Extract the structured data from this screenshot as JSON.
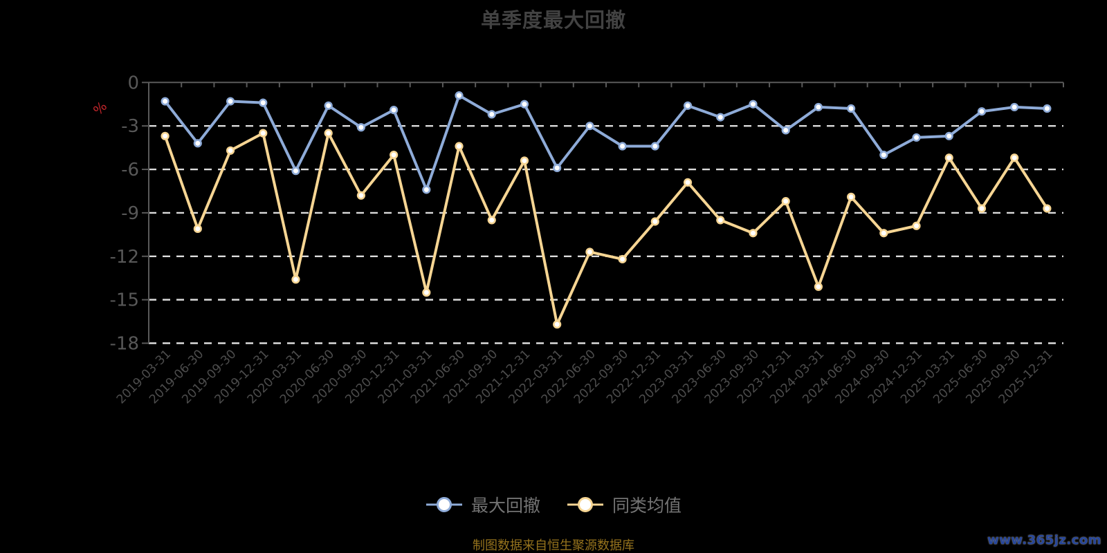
{
  "title": "单季度最大回撤",
  "subtitle": "制图数据来自恒生聚源数据库",
  "watermark": "www.365jz.com",
  "y_axis_unit": "%",
  "colors": {
    "background": "#000000",
    "title": "#424242",
    "axis_line": "#5a5a5a",
    "grid_line": "#dcdcdc",
    "y_tick_label": "#585858",
    "x_tick_label": "#4c4c4c",
    "legend_text": "#737373",
    "subtitle_text": "#96731d",
    "unit_label": "#c2252b",
    "watermark_text": "#26469b",
    "marker_fill": "#ffffff",
    "series_blue": "#8eabd8",
    "series_yellow": "#f6d593"
  },
  "chart_data": {
    "type": "line",
    "title": "单季度最大回撤",
    "ylabel": "%",
    "ylim": [
      -18,
      0
    ],
    "yticks": [
      0,
      -3,
      -6,
      -9,
      -12,
      -15,
      -18
    ],
    "grid": "horizontal dashed white lines",
    "legend_position": "bottom center",
    "x_label_rotation": -45,
    "categories": [
      "2019-03-31",
      "2019-06-30",
      "2019-09-30",
      "2019-12-31",
      "2020-03-31",
      "2020-06-30",
      "2020-09-30",
      "2020-12-31",
      "2021-03-31",
      "2021-06-30",
      "2021-09-30",
      "2021-12-31",
      "2022-03-31",
      "2022-06-30",
      "2022-09-30",
      "2022-12-31",
      "2023-03-31",
      "2023-06-30",
      "2023-09-30",
      "2023-12-31",
      "2024-03-31",
      "2024-06-30",
      "2024-09-30",
      "2024-12-31",
      "2025-03-31",
      "2025-06-30",
      "2025-09-30",
      "2025-12-31"
    ],
    "series": [
      {
        "name": "最大回撤",
        "color": "#8eabd8",
        "values": [
          -1.3,
          -4.2,
          -1.3,
          -1.4,
          -6.1,
          -1.6,
          -3.1,
          -1.9,
          -7.4,
          -0.9,
          -2.2,
          -1.5,
          -5.9,
          -3.0,
          -4.4,
          -4.4,
          -1.6,
          -2.4,
          -1.5,
          -3.3,
          -1.7,
          -1.8,
          -5.0,
          -3.8,
          -3.7,
          -2.0,
          -1.7,
          -1.8
        ]
      },
      {
        "name": "同类均值",
        "color": "#f6d593",
        "values": [
          -3.7,
          -10.1,
          -4.7,
          -3.5,
          -13.6,
          -3.5,
          -7.8,
          -5.0,
          -14.5,
          -4.4,
          -9.5,
          -5.4,
          -16.7,
          -11.7,
          -12.2,
          -9.6,
          -6.9,
          -9.5,
          -10.4,
          -8.2,
          -14.1,
          -7.9,
          -10.4,
          -9.9,
          -5.2,
          -8.7,
          -5.2,
          -8.7
        ]
      }
    ]
  }
}
